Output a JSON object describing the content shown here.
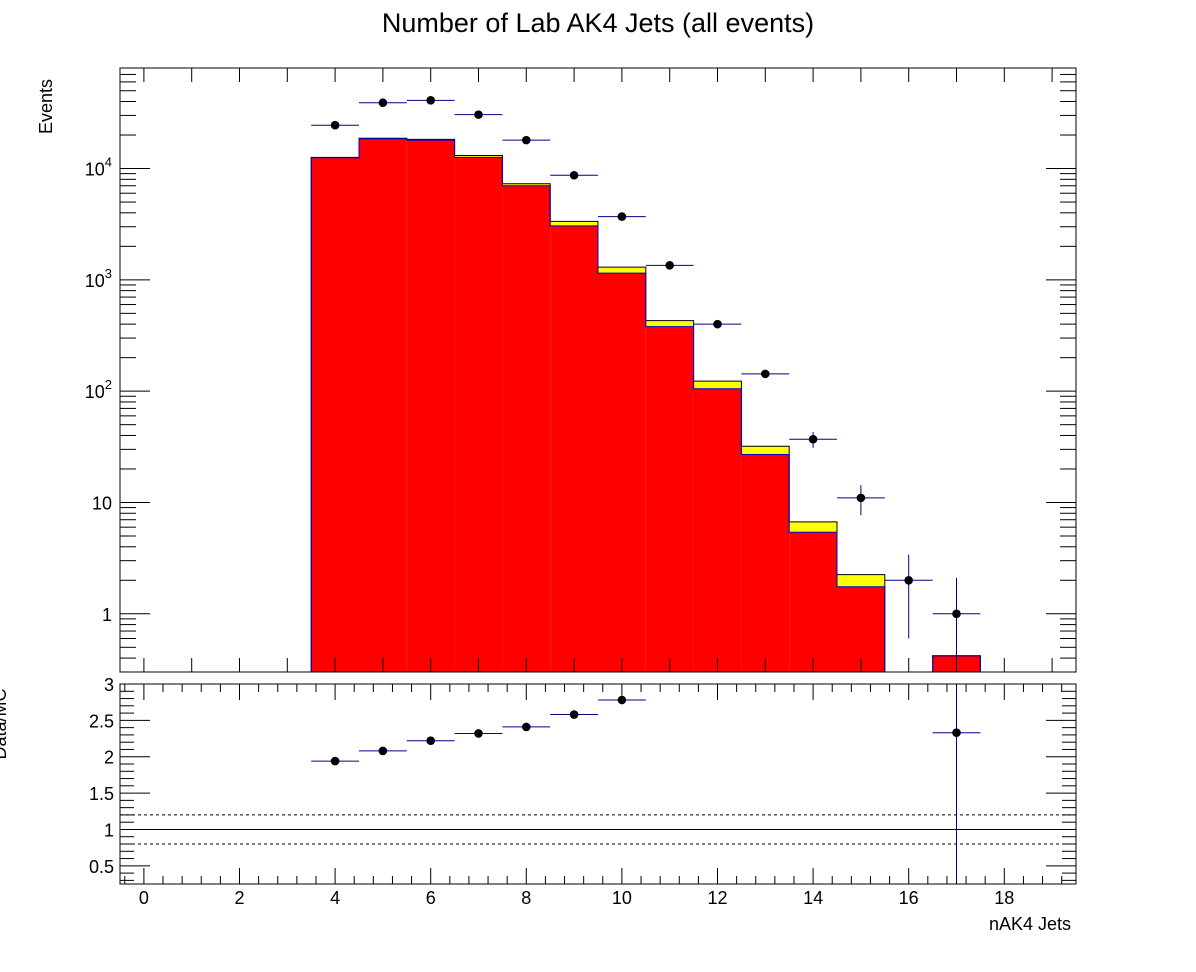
{
  "chart_data": [
    {
      "type": "bar",
      "panel": "main",
      "title": "Number of Lab AK4 Jets (all events)",
      "ylabel": "Events",
      "xlabel": "",
      "yscale": "log",
      "ylim": [
        0.3,
        80000
      ],
      "xlim": [
        -0.5,
        19.5
      ],
      "legend": "none",
      "y_tick_labels": [
        {
          "value": 1,
          "text": "1"
        },
        {
          "value": 10,
          "text": "10"
        },
        {
          "value": 100,
          "base": "10",
          "exp": "2"
        },
        {
          "value": 1000,
          "base": "10",
          "exp": "3"
        },
        {
          "value": 10000,
          "base": "10",
          "exp": "4"
        }
      ],
      "categories": [
        4,
        5,
        6,
        7,
        8,
        9,
        10,
        11,
        12,
        13,
        14,
        15,
        16,
        17
      ],
      "series": [
        {
          "kind": "stack-fill",
          "color": "#ff0000",
          "values": [
            12500,
            18500,
            18000,
            12600,
            7000,
            3050,
            1150,
            380,
            105,
            27,
            5.4,
            1.75,
            0,
            0.42
          ]
        },
        {
          "kind": "stack-fill",
          "color": "#ffff00",
          "values": [
            12600,
            18700,
            18300,
            13100,
            7300,
            3350,
            1300,
            430,
            123,
            32,
            6.7,
            2.25,
            0,
            0.42
          ]
        },
        {
          "kind": "points",
          "color": "#000000",
          "values": [
            24500,
            39000,
            41000,
            30500,
            18000,
            8700,
            3700,
            1350,
            400,
            143,
            37,
            11,
            2,
            1
          ],
          "err_low": [
            155,
            200,
            200,
            175,
            135,
            93,
            61,
            37,
            20,
            12,
            6,
            3.3,
            1.4,
            0.85
          ],
          "err_high": [
            155,
            200,
            200,
            175,
            135,
            93,
            61,
            37,
            20,
            12,
            6,
            3.3,
            1.4,
            1.1
          ]
        }
      ],
      "error_bar_color": "#00008b",
      "stack_outline_color": "#0000cc"
    },
    {
      "type": "scatter",
      "panel": "ratio",
      "ylabel": "Data/MC",
      "xlabel": "nAK4 Jets",
      "ylim": [
        0.25,
        3.0
      ],
      "xlim": [
        -0.5,
        19.5
      ],
      "x_ticks": [
        0,
        2,
        4,
        6,
        8,
        10,
        12,
        14,
        16,
        18
      ],
      "y_ticks": [
        0.5,
        1,
        1.5,
        2,
        2.5,
        3
      ],
      "x": [
        4,
        5,
        6,
        7,
        8,
        9,
        10,
        17
      ],
      "y": [
        1.94,
        2.08,
        2.22,
        2.32,
        2.41,
        2.58,
        2.78,
        2.33
      ],
      "y_err": [
        0.02,
        0.02,
        0.02,
        0.02,
        0.03,
        0.04,
        0.06,
        5
      ],
      "reference_lines": [
        {
          "value": 1.0,
          "style": "solid"
        },
        {
          "value": 1.2,
          "style": "dashed"
        },
        {
          "value": 0.8,
          "style": "dashed"
        }
      ]
    }
  ]
}
